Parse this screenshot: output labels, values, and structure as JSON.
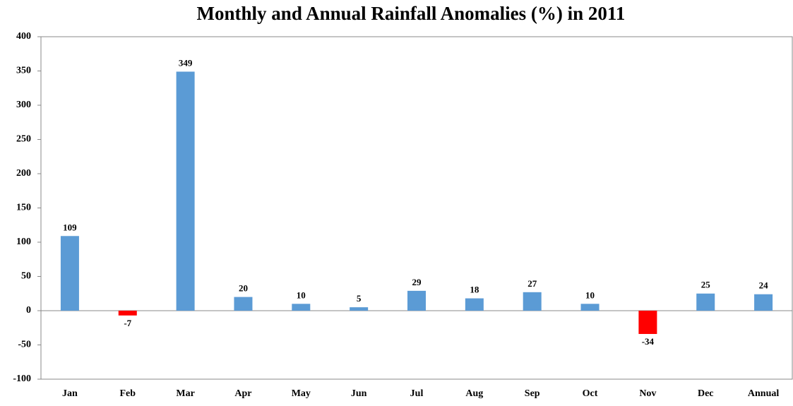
{
  "chart_data": {
    "type": "bar",
    "title": "Monthly and Annual Rainfall Anomalies (%) in 2011",
    "categories": [
      "Jan",
      "Feb",
      "Mar",
      "Apr",
      "May",
      "Jun",
      "Jul",
      "Aug",
      "Sep",
      "Oct",
      "Nov",
      "Dec",
      "Annual"
    ],
    "values": [
      109,
      -7,
      349,
      20,
      10,
      5,
      29,
      18,
      27,
      10,
      -34,
      25,
      24
    ],
    "color": "#5b9bd5",
    "negative_color": "#ff0000",
    "ylim": [
      -100,
      400
    ],
    "yticks": [
      -100,
      -50,
      0,
      50,
      100,
      150,
      200,
      250,
      300,
      350,
      400
    ],
    "grid": false
  }
}
